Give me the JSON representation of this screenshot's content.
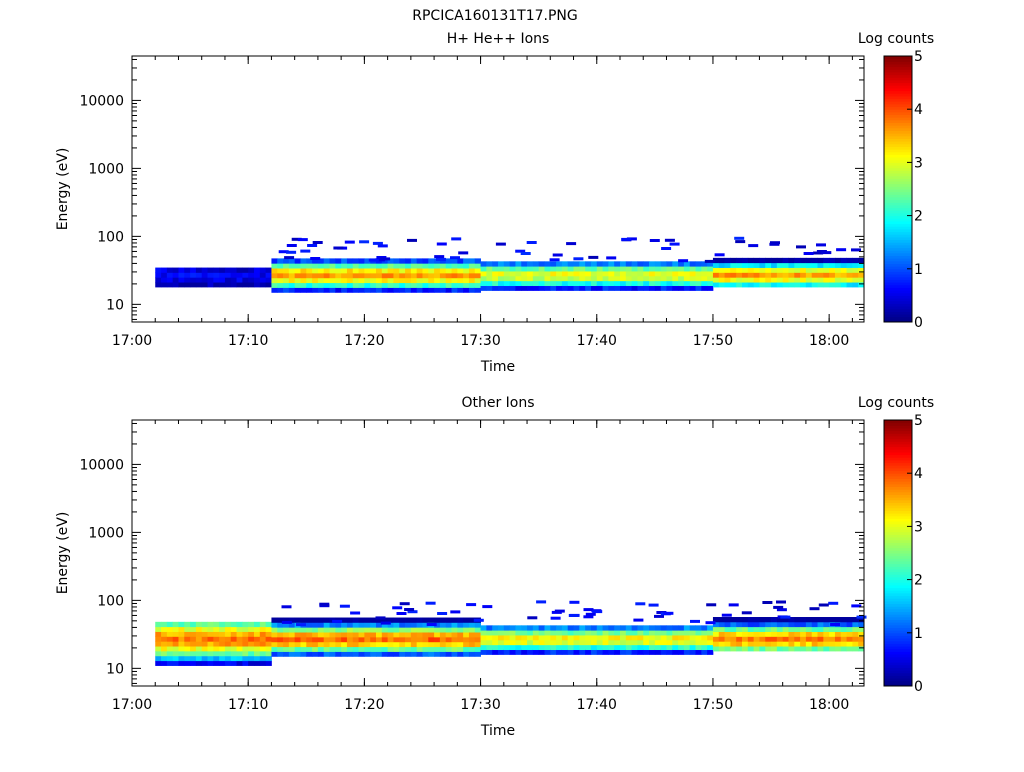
{
  "figure_title": "RPCICA160131T17.PNG",
  "chart_data": [
    {
      "type": "heatmap",
      "title": "H+ He++ Ions",
      "xlabel": "Time",
      "ylabel": "Energy (eV)",
      "x_ticks": [
        "17:00",
        "17:10",
        "17:20",
        "17:30",
        "17:40",
        "17:50",
        "18:00"
      ],
      "x_range": [
        "17:00",
        "18:03"
      ],
      "y_scale": "log",
      "y_ticks": [
        10,
        100,
        1000,
        10000
      ],
      "y_tick_labels": [
        "10",
        "100",
        "1000",
        "10000"
      ],
      "y_range": [
        5.5,
        45000
      ],
      "colorbar": {
        "label": "Log counts",
        "range": [
          0,
          5
        ],
        "ticks": [
          "0",
          "1",
          "2",
          "3",
          "4",
          "5"
        ],
        "colormap": "jet"
      },
      "segments": [
        {
          "t_start": "17:02",
          "t_end": "17:12",
          "e_low": 18,
          "e_high": 32,
          "peak": 0.6
        },
        {
          "t_start": "17:12",
          "t_end": "17:30",
          "e_low": 15,
          "e_high": 45,
          "peak": 3.6
        },
        {
          "t_start": "17:30",
          "t_end": "17:50",
          "e_low": 16,
          "e_high": 40,
          "peak": 3.1
        },
        {
          "t_start": "17:50",
          "t_end": "18:03",
          "e_low": 18,
          "e_high": 45,
          "peak": 3.6
        }
      ],
      "peak_energy": 27
    },
    {
      "type": "heatmap",
      "title": "Other Ions",
      "xlabel": "Time",
      "ylabel": "Energy (eV)",
      "x_ticks": [
        "17:00",
        "17:10",
        "17:20",
        "17:30",
        "17:40",
        "17:50",
        "18:00"
      ],
      "x_range": [
        "17:00",
        "18:03"
      ],
      "y_scale": "log",
      "y_ticks": [
        10,
        100,
        1000,
        10000
      ],
      "y_tick_labels": [
        "10",
        "100",
        "1000",
        "10000"
      ],
      "y_range": [
        5.5,
        45000
      ],
      "colorbar": {
        "label": "Log counts",
        "range": [
          0,
          5
        ],
        "ticks": [
          "0",
          "1",
          "2",
          "3",
          "4",
          "5"
        ],
        "colormap": "jet"
      },
      "segments": [
        {
          "t_start": "17:02",
          "t_end": "17:12",
          "e_low": 11,
          "e_high": 45,
          "peak": 3.8
        },
        {
          "t_start": "17:12",
          "t_end": "17:30",
          "e_low": 15,
          "e_high": 50,
          "peak": 3.9
        },
        {
          "t_start": "17:30",
          "t_end": "17:50",
          "e_low": 16,
          "e_high": 40,
          "peak": 3.2
        },
        {
          "t_start": "17:50",
          "t_end": "18:03",
          "e_low": 18,
          "e_high": 50,
          "peak": 3.8
        }
      ],
      "peak_energy": 27
    }
  ]
}
